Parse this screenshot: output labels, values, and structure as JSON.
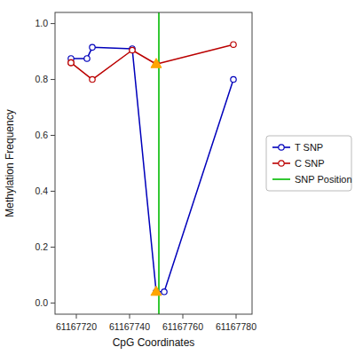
{
  "chart_data": {
    "type": "line",
    "x_label": "CpG Coordinates",
    "y_label": "Methylation Frequency",
    "series": [
      {
        "name": "T SNP",
        "color": "#0000BB",
        "marker": "circle",
        "x": [
          61167718,
          61167724,
          61167726,
          61167741,
          61167750,
          61167753,
          61167779
        ],
        "values": [
          0.875,
          0.875,
          0.915,
          0.91,
          0.04,
          0.04,
          0.8
        ]
      },
      {
        "name": "C SNP",
        "color": "#BB0000",
        "marker": "circle",
        "x": [
          61167718,
          61167718,
          61167726,
          61167741,
          61167750,
          61167779
        ],
        "values": [
          0.86,
          0.86,
          0.8,
          0.905,
          0.855,
          0.925
        ]
      },
      {
        "name": "SNP Position",
        "type": "vline",
        "color": "#00BB00",
        "x": [
          61167751
        ]
      },
      {
        "type": "scatter",
        "color": "#FFA500",
        "marker": "triangle",
        "x": [
          61167750,
          61167750
        ],
        "values": [
          0.855,
          0.04
        ]
      }
    ],
    "xlim": [
      61167712,
      61167786
    ],
    "ylim": [
      -0.04,
      1.04
    ],
    "xticks": [
      61167720,
      61167740,
      61167760,
      61167780
    ],
    "yticks": [
      {
        "value": 0.0,
        "label": "0.0"
      },
      0.2,
      0.4,
      0.6,
      0.8,
      {
        "value": 1.0,
        "label": "1.0"
      }
    ],
    "legend": "center right"
  }
}
